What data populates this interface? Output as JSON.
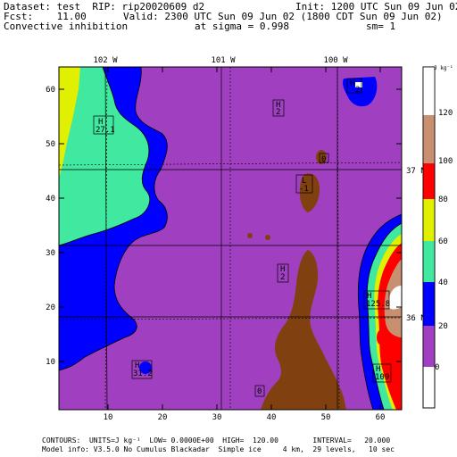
{
  "header": {
    "line1_left": "Dataset: test  RIP: rip20020609 d2",
    "line1_right": "Init: 1200 UTC Sun 09 Jun 02",
    "line2_left": "Fcst:    11.00",
    "line2_right": "Valid: 2300 UTC Sun 09 Jun 02 (1800 CDT Sun 09 Jun 02)",
    "line3_left": "Convective inhibition",
    "line3_mid": "at sigma = 0.998",
    "line3_right": "sm= 1"
  },
  "map": {
    "lon_labels": [
      "102 W",
      "101 W",
      "100 W"
    ],
    "lat_labels": [
      "37 N",
      "36 N"
    ],
    "y_ticks": [
      "60",
      "50",
      "40",
      "30",
      "20",
      "10"
    ],
    "x_ticks": [
      "10",
      "20",
      "30",
      "40",
      "50",
      "60"
    ],
    "fill_colors": {
      "level_0_20": "#a040c0",
      "level_20_40": "#0000ff",
      "level_40_60": "#40e8a0",
      "level_60_80": "#e0f000",
      "level_80_100": "#ff0000",
      "level_100_120": "#c89070",
      "level_120_plus": "#ffffff",
      "brown": "#804010"
    },
    "markers": [
      {
        "type": "H",
        "value": "2",
        "name": "high-marker-1"
      },
      {
        "type": "H",
        "value": "27.1",
        "name": "high-marker-2"
      },
      {
        "type": "H",
        "value": "2",
        "name": "high-marker-3"
      },
      {
        "type": "L",
        "value": "0",
        "name": "low-marker-1"
      },
      {
        "type": "L",
        "value": "-1",
        "name": "low-marker-2"
      },
      {
        "type": "H",
        "value": "2",
        "name": "high-marker-4"
      },
      {
        "type": "H",
        "value": "125.8",
        "name": "high-marker-5"
      },
      {
        "type": "H",
        "value": "31.2",
        "name": "high-marker-6"
      },
      {
        "type": "H",
        "value": "109",
        "name": "high-marker-7"
      },
      {
        "type": "L",
        "value": "0",
        "name": "low-marker-3"
      }
    ]
  },
  "colorbar": {
    "unit_label": "J kg⁻¹",
    "labels": [
      "120",
      "100",
      "80",
      "60",
      "40",
      "20",
      "0"
    ]
  },
  "footer": {
    "line1": "CONTOURS:  UNITS=J kg⁻¹  LOW= 0.0000E+00  HIGH=  120.00        INTERVAL=   20.000",
    "line2": "Model info: V3.5.0 No Cumulus Blackadar  Simple ice     4 km,  29 levels,   10 sec"
  }
}
